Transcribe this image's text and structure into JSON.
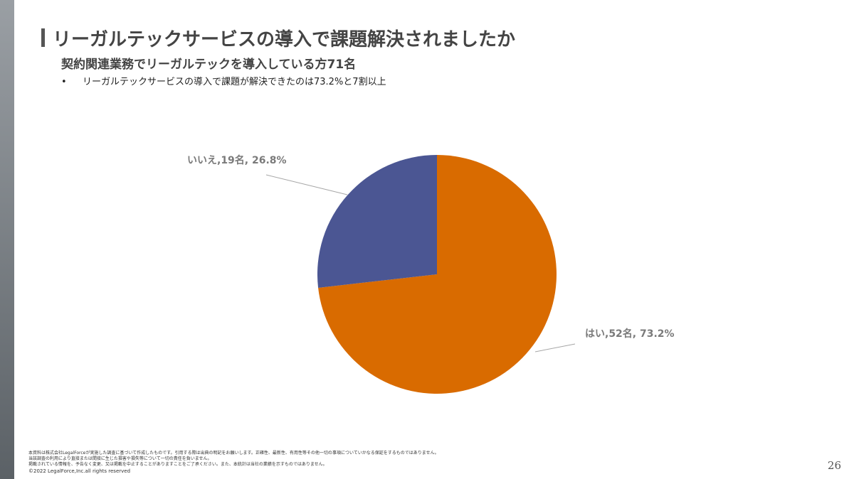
{
  "slide": {
    "title": "リーガルテックサービスの導入で課題解決されましたか",
    "subtitle": "契約関連業務でリーガルテックを導入している方71名",
    "bullet_marker": "•",
    "bullet_text": "リーガルテックサービスの導入で課題が解決できたのは73.2%と7割以上",
    "footer_lines": [
      "本資料は株式会社LegalForceが実施した調査に基づいて作成したものです。引用する際は出典の明記をお願いします。正確性、最新性、有用性等その他一切の事項についていかなる保証をするものではありません。",
      "当該調査の利用により直接または間接に生じた損害や損失等について一切の責任を負いません。",
      "掲載されている情報を、予告なく変更、又は掲載を中止することがありますことをご了承ください。また、本統計は当社の業績を示すものではありません。"
    ],
    "copyright": "©2022 LegalForce,Inc.all rights reserved",
    "page_number": "26"
  },
  "chart_data": {
    "type": "pie",
    "title": "",
    "slices": [
      {
        "label": "はい",
        "count": 52,
        "percent": 73.2,
        "data_label": "はい,52名, 73.2%",
        "color": "#d96b00"
      },
      {
        "label": "いいえ",
        "count": 19,
        "percent": 26.8,
        "data_label": "いいえ,19名, 26.8%",
        "color": "#4b5693"
      }
    ],
    "start_angle_deg": 0,
    "direction": "clockwise",
    "legend": "none"
  }
}
